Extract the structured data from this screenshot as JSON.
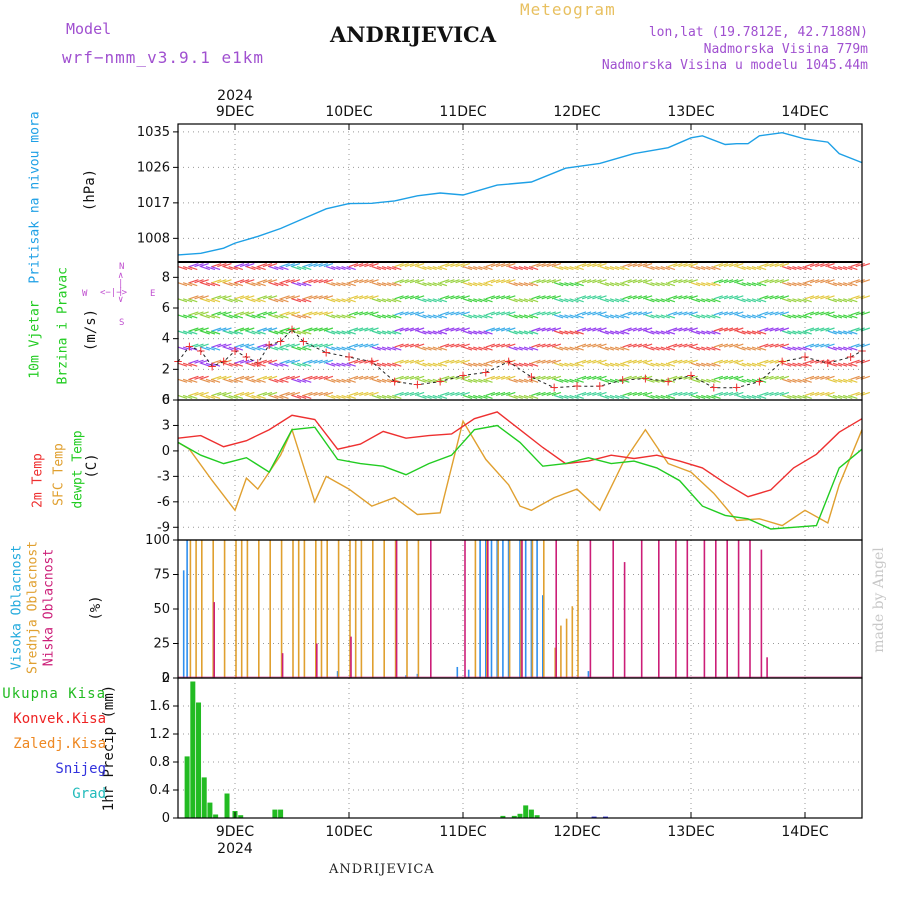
{
  "header": {
    "model_label": "Model",
    "model_name": "wrf−nmm_v3.9.1  e1km",
    "station": "ANDRIJEVICA",
    "meteogram": "Meteogram",
    "lonlat": "lon,lat (19.7812E, 42.7188N)",
    "elev": "Nadmorska Visina 779m",
    "elev_model": "Nadmorska Visina u modelu 1045.44m",
    "year": "2024",
    "footer_station": "ANDRIJEVICA",
    "watermark": "made by Angel"
  },
  "days": [
    "9DEC",
    "10DEC",
    "11DEC",
    "12DEC",
    "13DEC",
    "14DEC"
  ],
  "colors": {
    "pressure": "#1ea0e6",
    "temp2m": "#ee3030",
    "tsfc": "#e0a030",
    "dewpt": "#22cc22",
    "high": "#3090ee",
    "mid": "#e0a030",
    "low": "#cc1e78",
    "total_precip": "#22bb22",
    "conv": "#ee2222",
    "frozen": "#ee8822",
    "snow": "#3333dd",
    "hail": "#22bbbb"
  },
  "panels": {
    "pressure": {
      "label": "Pritisak na nivou mora",
      "unit": "(hPa)"
    },
    "wind": {
      "label1": "10m Vjetar",
      "label2": "Brzina i Pravac",
      "unit": "(m/s)",
      "compass_n": "N",
      "compass_s": "S",
      "compass_w": "W",
      "compass_e": "E"
    },
    "temp": {
      "label1": "2m Temp",
      "label2": "SFC Temp",
      "label3": "dewpt Temp",
      "unit": "(C)"
    },
    "cloud": {
      "label1": "Visoka Oblacnost",
      "label2": "Srednja Oblacnost",
      "label3": "Niska Oblacnost",
      "unit": "(%)"
    },
    "precip": {
      "unit": "1hr Precip (mm)",
      "legend": [
        "Ukupna Kisa",
        "Konvek.Kisa",
        "Zaledj.Kisa",
        "Snijeg",
        "Grad"
      ]
    }
  },
  "chart_data": [
    {
      "type": "line",
      "title": "",
      "ylabel": "Pritisak na nivou mora (hPa)",
      "ylim": [
        1002,
        1037
      ],
      "yticks": [
        "1008",
        "1017",
        "1026",
        "1035"
      ],
      "x_units": "days since 8DEC 00UTC 2024",
      "series": [
        {
          "name": "Pritisak na nivou mora",
          "x": [
            0.5,
            0.7,
            0.9,
            1.0,
            1.2,
            1.4,
            1.6,
            1.8,
            2.0,
            2.2,
            2.4,
            2.6,
            2.8,
            3.0,
            3.3,
            3.6,
            3.9,
            4.2,
            4.5,
            4.8,
            5.0,
            5.1,
            5.3,
            5.4,
            5.5,
            5.6,
            5.8,
            5.9,
            6.0,
            6.2,
            6.3,
            6.5
          ],
          "y": [
            1003.8,
            1004.2,
            1005.5,
            1006.8,
            1008.5,
            1010.5,
            1013,
            1015.5,
            1016.8,
            1016.9,
            1017.5,
            1018.8,
            1019.5,
            1019,
            1021.5,
            1022.3,
            1025.8,
            1027,
            1029.5,
            1031,
            1033.5,
            1034,
            1031.8,
            1032,
            1032,
            1034,
            1034.8,
            1034,
            1033.2,
            1032.4,
            1029.5,
            1027.2
          ]
        }
      ]
    },
    {
      "type": "line",
      "title": "",
      "ylabel": "10m Vjetar (m/s)",
      "ylim": [
        0,
        9
      ],
      "yticks": [
        "0",
        "2",
        "4",
        "6",
        "8"
      ],
      "series": [
        {
          "name": "10m Vjetar",
          "x": [
            0.5,
            0.6,
            0.7,
            0.8,
            0.9,
            1.0,
            1.1,
            1.2,
            1.3,
            1.4,
            1.5,
            1.6,
            1.8,
            2.0,
            2.2,
            2.4,
            2.6,
            2.8,
            3.0,
            3.2,
            3.4,
            3.6,
            3.8,
            4.0,
            4.2,
            4.4,
            4.6,
            4.8,
            5.0,
            5.2,
            5.4,
            5.6,
            5.8,
            6.0,
            6.2,
            6.4,
            6.5
          ],
          "y": [
            2.5,
            3.5,
            3.2,
            2.2,
            2.5,
            3.2,
            2.8,
            2.4,
            3.6,
            3.8,
            4.6,
            3.8,
            3.1,
            2.8,
            2.5,
            1.2,
            1.0,
            1.2,
            1.6,
            1.8,
            2.5,
            1.5,
            0.8,
            0.9,
            0.9,
            1.3,
            1.4,
            1.2,
            1.6,
            0.8,
            0.8,
            1.2,
            2.5,
            2.8,
            2.4,
            2.8,
            3.2
          ]
        }
      ]
    },
    {
      "type": "line",
      "title": "",
      "ylabel": "Temp (C)",
      "ylim": [
        -10.5,
        6
      ],
      "yticks": [
        "-9",
        "-6",
        "-3",
        "0",
        "3",
        "6"
      ],
      "series": [
        {
          "name": "2m Temp",
          "x": [
            0.5,
            0.7,
            0.9,
            1.1,
            1.3,
            1.5,
            1.7,
            1.9,
            2.1,
            2.3,
            2.5,
            2.7,
            2.9,
            3.1,
            3.3,
            3.5,
            3.7,
            3.9,
            4.1,
            4.3,
            4.5,
            4.7,
            4.9,
            5.1,
            5.3,
            5.5,
            5.7,
            5.9,
            6.1,
            6.3,
            6.5
          ],
          "y": [
            1.5,
            1.8,
            0.5,
            1.2,
            2.5,
            4.2,
            3.7,
            0.2,
            0.8,
            2.3,
            1.5,
            1.8,
            2.0,
            3.8,
            4.6,
            2.5,
            0.4,
            -1.5,
            -1.2,
            -0.5,
            -0.9,
            -0.5,
            -1.2,
            -2.0,
            -3.8,
            -5.4,
            -4.6,
            -2.0,
            -0.4,
            2.2,
            3.8
          ]
        },
        {
          "name": "SFC Temp",
          "x": [
            0.5,
            0.6,
            0.8,
            1.0,
            1.1,
            1.2,
            1.4,
            1.5,
            1.7,
            1.8,
            2.0,
            2.2,
            2.4,
            2.6,
            2.8,
            3.0,
            3.2,
            3.4,
            3.5,
            3.6,
            3.8,
            4.0,
            4.2,
            4.4,
            4.6,
            4.8,
            5.0,
            5.2,
            5.4,
            5.6,
            5.8,
            6.0,
            6.2,
            6.3,
            6.5
          ],
          "y": [
            1.0,
            0.2,
            -3.5,
            -7.0,
            -3.2,
            -4.5,
            -0.5,
            2.5,
            -6.0,
            -3.0,
            -4.5,
            -6.5,
            -5.5,
            -7.5,
            -7.3,
            3.5,
            -1.0,
            -4.0,
            -6.5,
            -7.0,
            -5.5,
            -4.5,
            -7.0,
            -1.5,
            2.5,
            -1.5,
            -2.5,
            -5.0,
            -8.2,
            -8.0,
            -8.8,
            -7.0,
            -8.5,
            -4.0,
            2.5
          ]
        },
        {
          "name": "dewpt Temp",
          "x": [
            0.5,
            0.7,
            0.9,
            1.1,
            1.3,
            1.5,
            1.7,
            1.9,
            2.1,
            2.3,
            2.5,
            2.7,
            2.9,
            3.1,
            3.3,
            3.5,
            3.7,
            3.9,
            4.1,
            4.3,
            4.5,
            4.7,
            4.9,
            5.1,
            5.3,
            5.5,
            5.7,
            5.9,
            6.1,
            6.3,
            6.5
          ],
          "y": [
            1.0,
            -0.5,
            -1.5,
            -0.8,
            -2.5,
            2.5,
            2.8,
            -1.0,
            -1.5,
            -1.8,
            -2.8,
            -1.5,
            -0.5,
            2.5,
            3.0,
            1.0,
            -1.8,
            -1.5,
            -0.8,
            -1.5,
            -1.2,
            -2.0,
            -3.5,
            -6.5,
            -7.6,
            -8.0,
            -9.2,
            -9.0,
            -8.8,
            -2.0,
            0.2
          ]
        }
      ]
    },
    {
      "type": "bar",
      "title": "",
      "ylabel": "Oblacnost (%)",
      "ylim": [
        0,
        100
      ],
      "yticks": [
        "0",
        "25",
        "50",
        "75",
        "100"
      ],
      "series": [
        {
          "name": "Visoka Oblacnost",
          "x": [
            0.55,
            0.58,
            1.9,
            2.5,
            2.6,
            2.95,
            3.05,
            3.15,
            3.2,
            3.25,
            3.3,
            3.35,
            3.4,
            3.5,
            3.55,
            3.6,
            3.65,
            3.7,
            4.1
          ],
          "y": [
            78,
            100,
            5,
            2,
            3,
            8,
            6,
            100,
            100,
            100,
            100,
            100,
            100,
            100,
            100,
            100,
            100,
            60,
            5
          ]
        },
        {
          "name": "Srednja Oblacnost",
          "x": [
            0.6,
            0.65,
            0.7,
            0.8,
            0.9,
            1.0,
            1.05,
            1.1,
            1.2,
            1.3,
            1.4,
            1.5,
            1.55,
            1.6,
            1.7,
            1.75,
            1.8,
            1.9,
            2.0,
            2.05,
            2.1,
            2.2,
            2.3,
            2.4,
            2.5,
            2.6,
            3.1,
            3.2,
            3.3,
            3.4,
            3.5,
            3.6,
            3.7,
            3.8,
            3.85,
            3.9,
            3.95,
            4.0
          ],
          "y": [
            100,
            100,
            100,
            100,
            100,
            100,
            100,
            100,
            100,
            100,
            100,
            100,
            100,
            100,
            100,
            100,
            100,
            100,
            100,
            100,
            100,
            100,
            100,
            100,
            100,
            100,
            100,
            100,
            100,
            100,
            100,
            100,
            100,
            22,
            38,
            43,
            52,
            100
          ]
        },
        {
          "name": "Niska Oblacnost",
          "x": [
            0.8,
            1.4,
            1.7,
            2.0,
            2.4,
            2.7,
            3.0,
            3.2,
            3.5,
            3.8,
            4.1,
            4.3,
            4.4,
            4.55,
            4.7,
            4.85,
            4.95,
            5.1,
            5.2,
            5.3,
            5.4,
            5.5,
            5.6,
            5.65
          ],
          "y": [
            55,
            18,
            25,
            30,
            100,
            100,
            100,
            100,
            100,
            100,
            100,
            100,
            84,
            100,
            100,
            100,
            100,
            100,
            100,
            100,
            100,
            100,
            93,
            15
          ]
        }
      ]
    },
    {
      "type": "bar",
      "title": "",
      "ylabel": "1hr Precip (mm)",
      "ylim": [
        0,
        2
      ],
      "yticks": [
        "0",
        "0.4",
        "0.8",
        "1.2",
        "1.6",
        "2"
      ],
      "series": [
        {
          "name": "Ukupna Kisa",
          "x": [
            0.58,
            0.63,
            0.68,
            0.73,
            0.78,
            0.83,
            0.93,
            1.0,
            1.05,
            1.35,
            1.4,
            3.35,
            3.45,
            3.5,
            3.55,
            3.6,
            3.65
          ],
          "y": [
            0.88,
            1.95,
            1.65,
            0.58,
            0.22,
            0.05,
            0.35,
            0.1,
            0.04,
            0.12,
            0.12,
            0.03,
            0.03,
            0.06,
            0.18,
            0.12,
            0.04
          ]
        },
        {
          "name": "Snijeg",
          "x": [
            4.15,
            4.25
          ],
          "y": [
            0.02,
            0.02
          ]
        }
      ]
    }
  ]
}
